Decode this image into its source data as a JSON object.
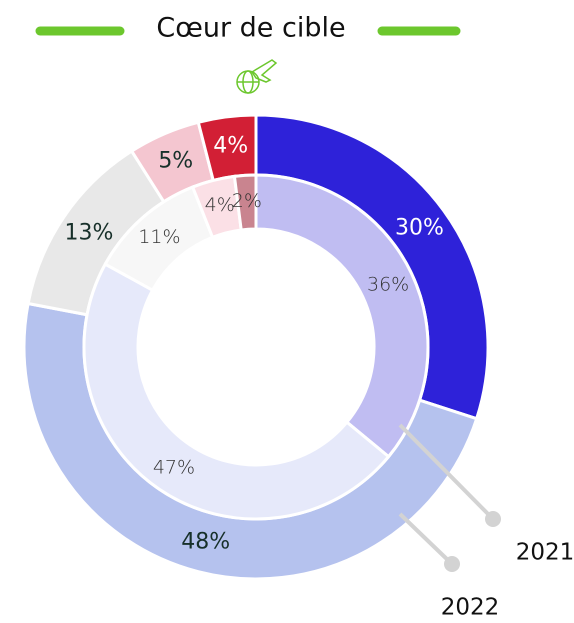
{
  "chart_data": {
    "type": "donut",
    "title": "Cœur de cible",
    "series": [
      {
        "name": "2022",
        "values": [
          30,
          48,
          13,
          5,
          4
        ],
        "value_labels": [
          "30%",
          "48%",
          "13%",
          "5%",
          "4%"
        ],
        "colors": [
          "#2e22d9",
          "#b5c2ee",
          "#e8e8e8",
          "#f4c6d0",
          "#d21f35"
        ],
        "label_colors": [
          "#ffffff",
          "#17302a",
          "#17302a",
          "#17302a",
          "#ffffff"
        ]
      },
      {
        "name": "2021",
        "values": [
          36,
          47,
          11,
          4,
          2
        ],
        "value_labels": [
          "36%",
          "47%",
          "11%",
          "4%",
          "2%"
        ],
        "colors": [
          "#c0bdf2",
          "#e6e9fa",
          "#f7f7f7",
          "#fbe0e6",
          "#c9848f"
        ],
        "label_colors": [
          "#333333",
          "#333333",
          "#333333",
          "#333333",
          "#333333"
        ]
      }
    ]
  }
}
